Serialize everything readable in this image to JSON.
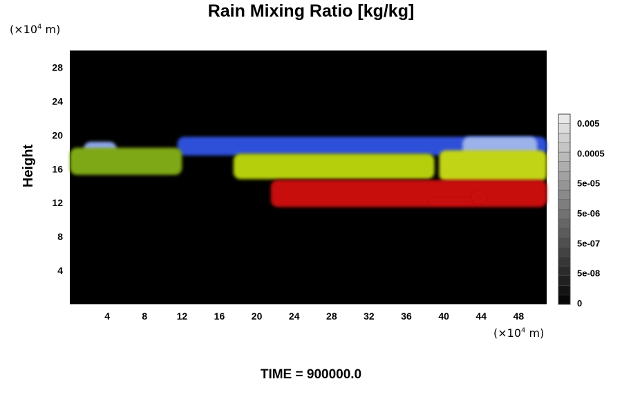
{
  "chart_data": {
    "type": "heatmap",
    "title": "Rain Mixing Ratio [kg/kg]",
    "xlabel": "",
    "ylabel": "Height",
    "x_unit": "(×10",
    "x_unit_exp": "4",
    "x_unit_tail": " m)",
    "y_unit": "(×10",
    "y_unit_exp": "4",
    "y_unit_tail": " m)",
    "xlim": [
      0,
      51
    ],
    "ylim": [
      0,
      30
    ],
    "x_ticks": [
      4,
      8,
      12,
      16,
      20,
      24,
      28,
      32,
      36,
      40,
      44,
      48
    ],
    "y_ticks": [
      4,
      8,
      12,
      16,
      20,
      24,
      28
    ],
    "colorbar": {
      "labels": [
        "0.005",
        "0.0005",
        "5e-05",
        "5e-06",
        "5e-07",
        "5e-08",
        "0"
      ],
      "levels": 20
    },
    "background_color": "#000000",
    "field_regions": [
      {
        "name": "upper layer",
        "color": "#2f4fd8",
        "x": [
          11.5,
          51
        ],
        "y": [
          17.6,
          19.8
        ]
      },
      {
        "name": "peak left",
        "color": "#8fa6ee",
        "x": [
          1.5,
          5
        ],
        "y": [
          17.2,
          19.2
        ]
      },
      {
        "name": "peak right",
        "color": "#9bb2ea",
        "x": [
          42,
          50
        ],
        "y": [
          17.2,
          19.8
        ]
      },
      {
        "name": "green-yellow band left",
        "color": "#7fa814",
        "x": [
          0,
          12
        ],
        "y": [
          15.3,
          18.5
        ]
      },
      {
        "name": "green-yellow band center",
        "color": "#b5cf10",
        "x": [
          17.5,
          39
        ],
        "y": [
          14.8,
          17.8
        ]
      },
      {
        "name": "green-yellow band right",
        "color": "#c2d416",
        "x": [
          39.5,
          51
        ],
        "y": [
          14.5,
          18.2
        ]
      },
      {
        "name": "red lower layer",
        "color": "#c81010",
        "x": [
          21.5,
          51
        ],
        "y": [
          11.5,
          14.7
        ]
      },
      {
        "name": "red cell",
        "color": "#c81010",
        "x": [
          38.5,
          43
        ],
        "y": [
          11.8,
          12.6
        ]
      },
      {
        "name": "red cell small",
        "color": "#c81010",
        "x": [
          43,
          44.5
        ],
        "y": [
          12,
          13.3
        ]
      }
    ]
  },
  "footer": {
    "time_label": "TIME = 900000.0"
  }
}
